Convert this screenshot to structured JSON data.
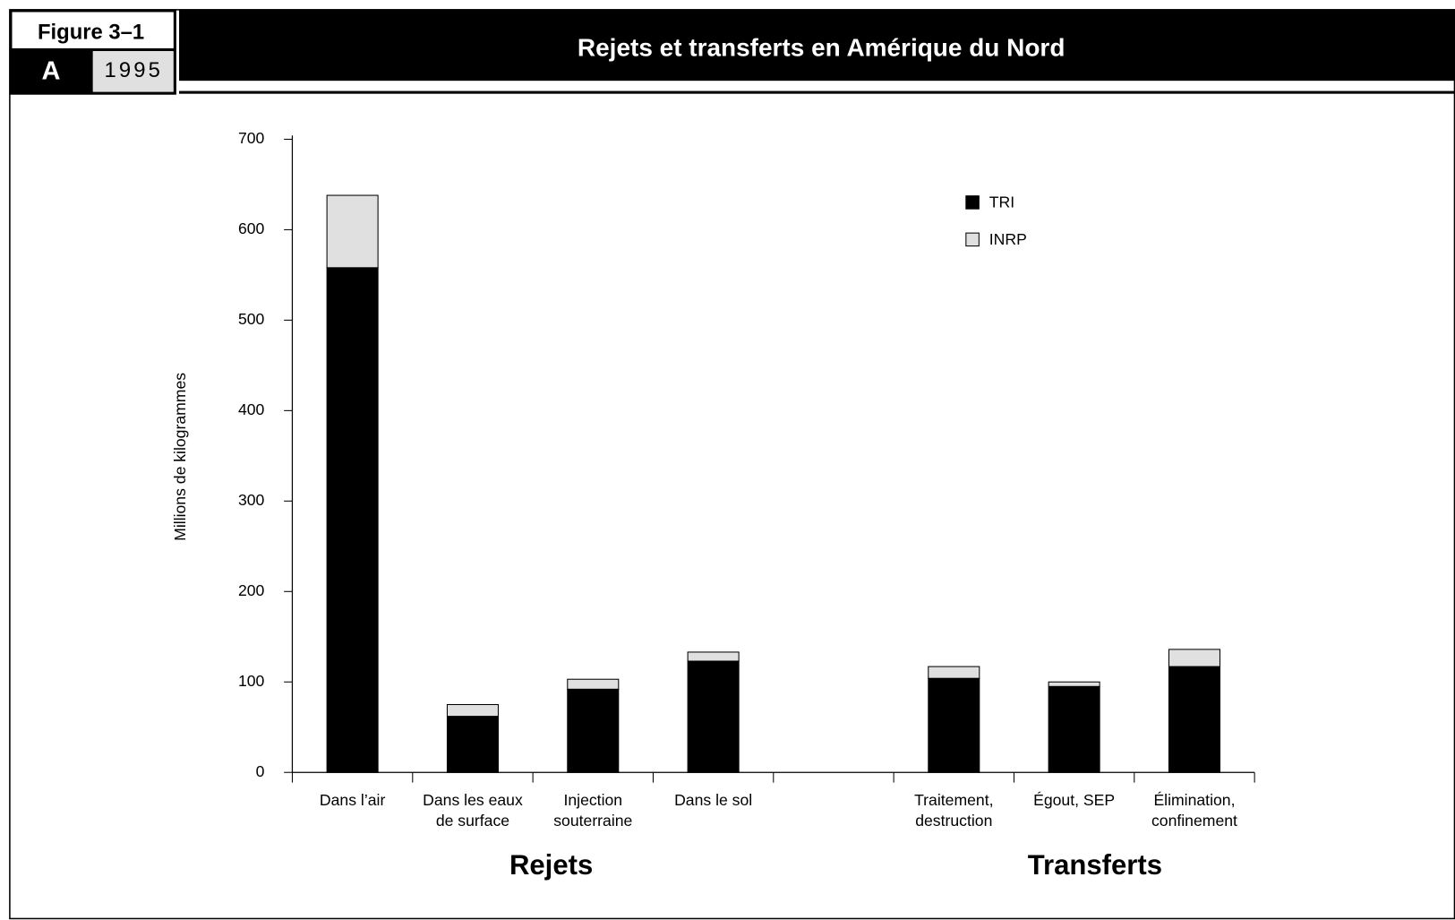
{
  "header": {
    "figure": "Figure 3–1",
    "panel": "A",
    "year": "1995"
  },
  "chart_data": {
    "type": "bar",
    "stacked": true,
    "title": "Rejets et transferts en Amérique du Nord",
    "ylabel": "Millions de kilogrammes",
    "categories": [
      [
        "Dans l’air"
      ],
      [
        "Dans les eaux",
        "de surface"
      ],
      [
        "Injection",
        "souterraine"
      ],
      [
        "Dans le sol"
      ],
      null,
      [
        "Traitement,",
        "destruction"
      ],
      [
        "Égout, SEP"
      ],
      [
        "Élimination,",
        "confinement"
      ]
    ],
    "series": [
      {
        "name": "TRI",
        "color": "#000000",
        "values": [
          558,
          62,
          92,
          123,
          null,
          104,
          95,
          117
        ]
      },
      {
        "name": "INRP",
        "color": "#e0e0e0",
        "values": [
          80,
          13,
          11,
          10,
          null,
          13,
          5,
          19
        ]
      }
    ],
    "groups": [
      "Rejets",
      "Transferts"
    ],
    "ylim": [
      0,
      700
    ],
    "yticks": [
      0,
      100,
      200,
      300,
      400,
      500,
      600,
      700
    ],
    "legend": "top-right"
  }
}
